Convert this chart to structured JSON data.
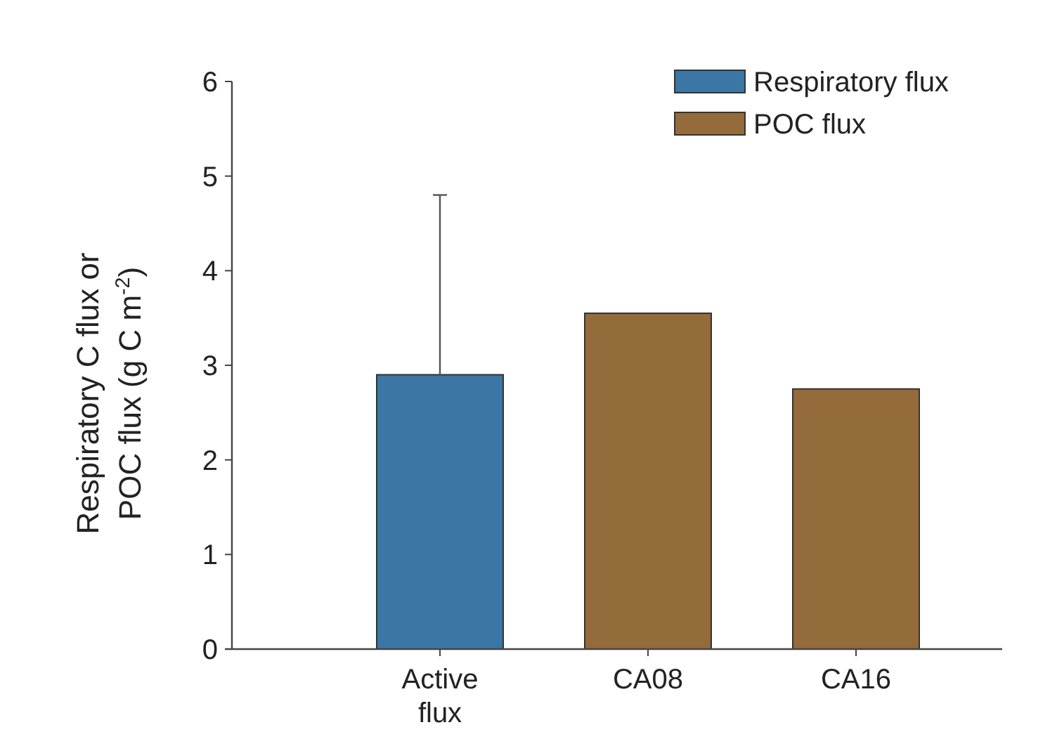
{
  "chart_data": {
    "type": "bar",
    "ylabel": "Respiratory C flux or POC flux (g C m$^{-2}$)",
    "categories": [
      "Active flux",
      "CA08",
      "CA16"
    ],
    "series": [
      {
        "name": "Respiratory flux",
        "color": "#3b76a4",
        "values": [
          2.9,
          null,
          null
        ],
        "errors": [
          [
            2.9,
            4.8
          ],
          null,
          null
        ]
      },
      {
        "name": "POC flux",
        "color": "#946b3a",
        "values": [
          null,
          3.55,
          2.75
        ]
      }
    ],
    "ylim": [
      0,
      6
    ],
    "yticks": [
      0,
      1,
      2,
      3,
      4,
      5,
      6
    ],
    "legend": "top right"
  }
}
